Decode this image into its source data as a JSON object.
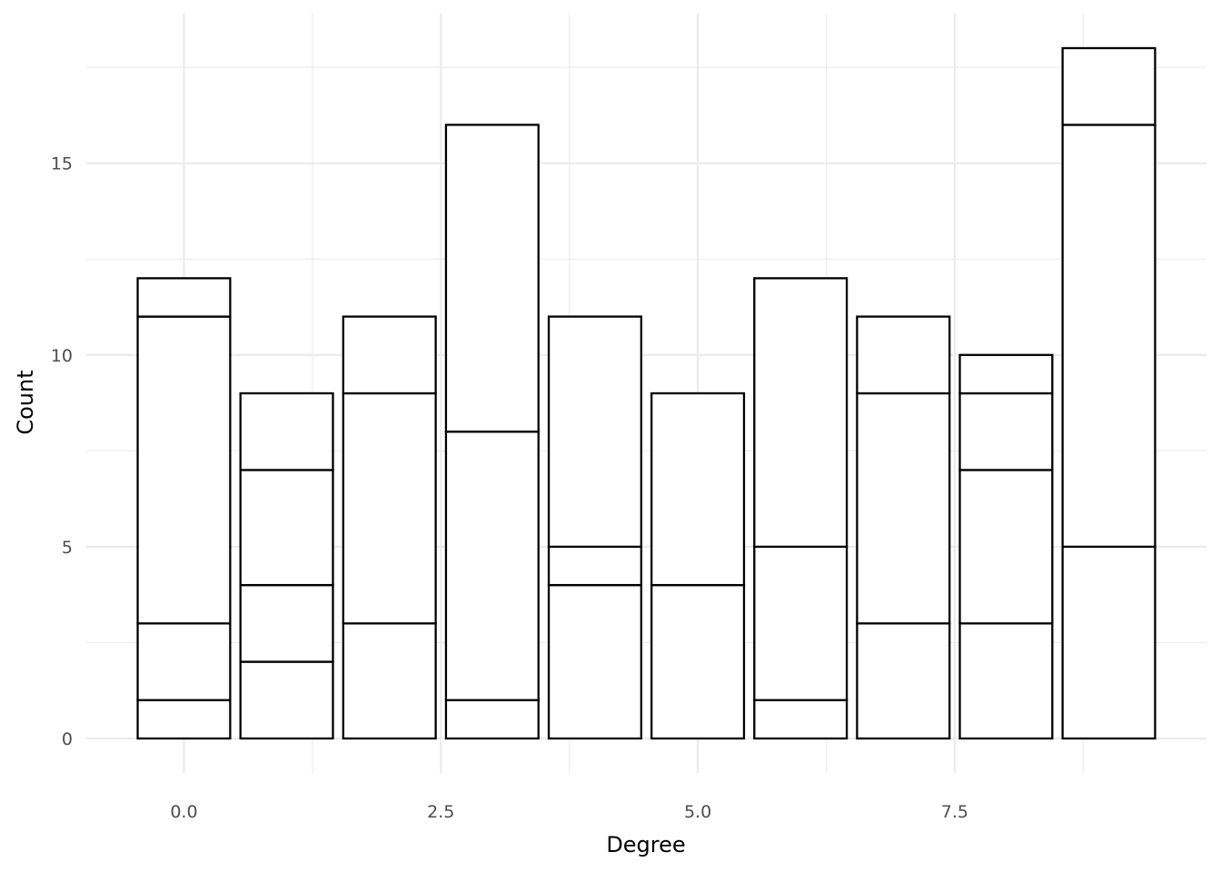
{
  "chart_data": {
    "type": "bar",
    "stacked": true,
    "xlabel": "Degree",
    "ylabel": "Count",
    "title": "",
    "x_range": [
      -0.95,
      9.95
    ],
    "y_range": [
      -0.9,
      18.9
    ],
    "x_ticks": [
      0.0,
      2.5,
      5.0,
      7.5
    ],
    "x_tick_labels": [
      "0.0",
      "2.5",
      "5.0",
      "7.5"
    ],
    "y_ticks": [
      0,
      5,
      10,
      15
    ],
    "y_tick_labels": [
      "0",
      "5",
      "10",
      "15"
    ],
    "grid": true,
    "legend": "none",
    "bar_fill": "#ffffff",
    "bar_stroke": "#000000",
    "bars": [
      {
        "x": 0,
        "segments": [
          1,
          2,
          8,
          1
        ],
        "total": 12
      },
      {
        "x": 1,
        "segments": [
          2,
          2,
          3,
          2
        ],
        "total": 9
      },
      {
        "x": 2,
        "segments": [
          3,
          6,
          2
        ],
        "total": 11
      },
      {
        "x": 3,
        "segments": [
          1,
          7,
          8
        ],
        "total": 16
      },
      {
        "x": 4,
        "segments": [
          4,
          1,
          6
        ],
        "total": 11
      },
      {
        "x": 5,
        "segments": [
          4,
          5
        ],
        "total": 9
      },
      {
        "x": 6,
        "segments": [
          1,
          4,
          7
        ],
        "total": 12
      },
      {
        "x": 7,
        "segments": [
          3,
          6,
          2
        ],
        "total": 11
      },
      {
        "x": 8,
        "segments": [
          3,
          4,
          2,
          1
        ],
        "total": 10
      },
      {
        "x": 9,
        "segments": [
          5,
          11,
          2
        ],
        "total": 18
      }
    ]
  }
}
